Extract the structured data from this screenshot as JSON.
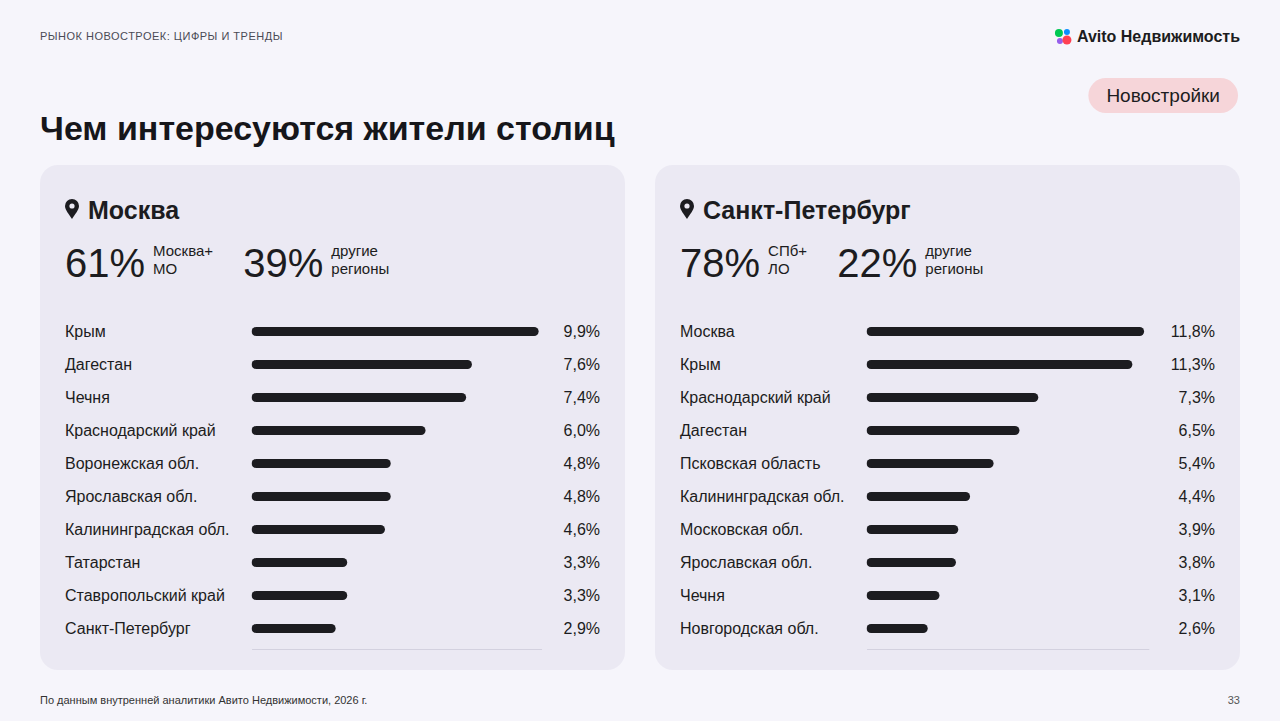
{
  "slide": {
    "section": "РЫНОК НОВОСТРОЕК: ЦИФРЫ И ТРЕНДЫ",
    "brand": "Avito Недвижимость",
    "tag": "Новостройки",
    "title": "Чем интересуются жители столиц",
    "source": "По данным внутренней аналитики Авито Недвижимости, 2026 г.",
    "page": "33"
  },
  "chart_data": [
    {
      "type": "bar",
      "orientation": "horizontal",
      "title": "Москва",
      "annotations": [
        {
          "text": "61%",
          "caption": "Москва+ МО"
        },
        {
          "text": "39%",
          "caption": "другие регионы"
        }
      ],
      "categories": [
        "Крым",
        "Дагестан",
        "Чечня",
        "Краснодарский край",
        "Воронежская обл.",
        "Ярославская обл.",
        "Калининградская обл.",
        "Татарстан",
        "Ставропольский край",
        "Санкт-Петербург"
      ],
      "values": [
        9.9,
        7.6,
        7.4,
        6.0,
        4.8,
        4.8,
        4.6,
        3.3,
        3.3,
        2.9
      ],
      "value_labels": [
        "9,9%",
        "7,6%",
        "7,4%",
        "6,0%",
        "4,8%",
        "4,8%",
        "4,6%",
        "3,3%",
        "3,3%",
        "2,9%"
      ],
      "color": "#1c1c20",
      "xlim": [
        0,
        10
      ],
      "grid": false,
      "data_labels": true,
      "tick_labels": "y"
    },
    {
      "type": "bar",
      "orientation": "horizontal",
      "title": "Санкт-Петербург",
      "annotations": [
        {
          "text": "78%",
          "caption": "СПб+ ЛО"
        },
        {
          "text": "22%",
          "caption": "другие регионы"
        }
      ],
      "categories": [
        "Москва",
        "Крым",
        "Краснодарский край",
        "Дагестан",
        "Псковская область",
        "Калининградская обл.",
        "Московская обл.",
        "Ярославская обл.",
        "Чечня",
        "Новгородская обл."
      ],
      "values": [
        11.8,
        11.3,
        7.3,
        6.5,
        5.4,
        4.4,
        3.9,
        3.8,
        3.1,
        2.6
      ],
      "value_labels": [
        "11,8%",
        "11,3%",
        "7,3%",
        "6,5%",
        "5,4%",
        "4,4%",
        "3,9%",
        "3,8%",
        "3,1%",
        "2,6%"
      ],
      "color": "#1c1c20",
      "xlim": [
        0,
        12
      ],
      "grid": false,
      "data_labels": true,
      "tick_labels": "y"
    }
  ]
}
